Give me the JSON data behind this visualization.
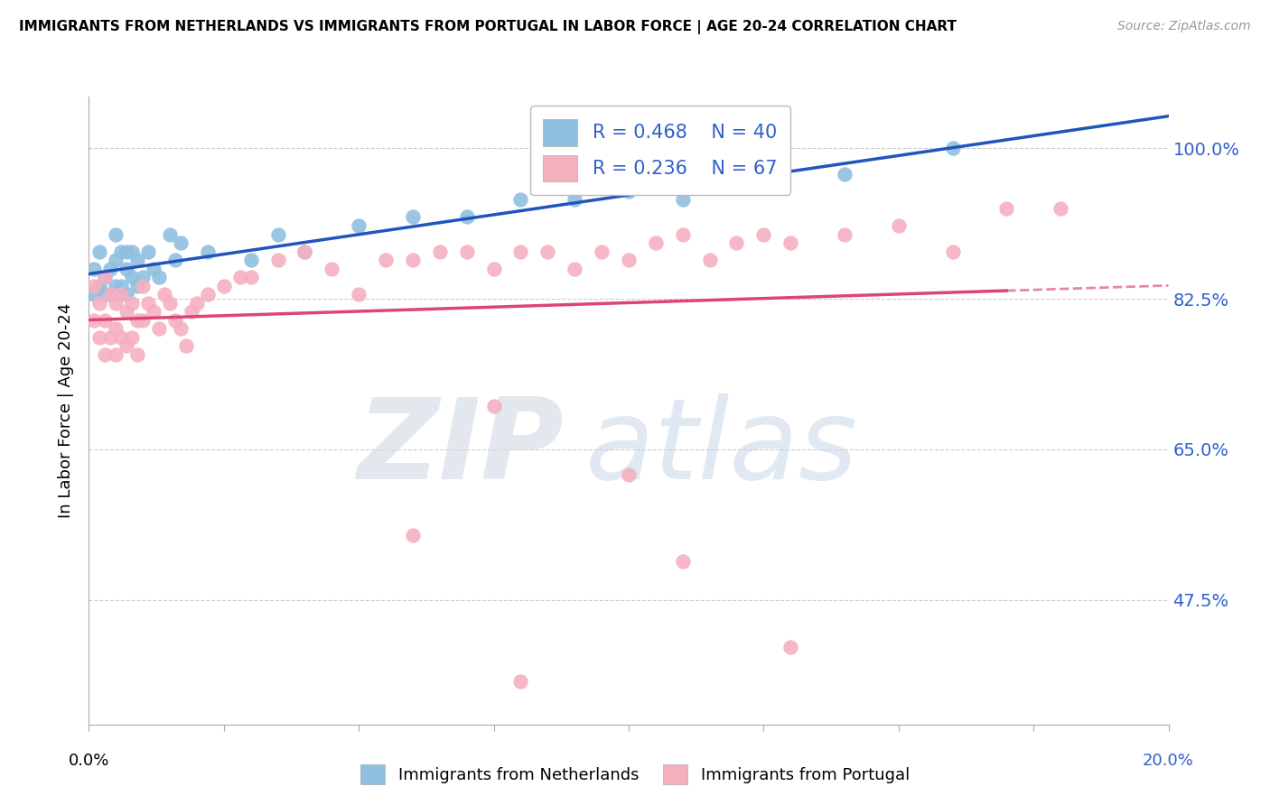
{
  "title": "IMMIGRANTS FROM NETHERLANDS VS IMMIGRANTS FROM PORTUGAL IN LABOR FORCE | AGE 20-24 CORRELATION CHART",
  "source": "Source: ZipAtlas.com",
  "ylabel": "In Labor Force | Age 20-24",
  "yticks": [
    0.475,
    0.65,
    0.825,
    1.0
  ],
  "ytick_labels": [
    "47.5%",
    "65.0%",
    "82.5%",
    "100.0%"
  ],
  "xlim": [
    0.0,
    0.2
  ],
  "ylim": [
    0.33,
    1.06
  ],
  "legend_r_blue": "R = 0.468",
  "legend_n_blue": "N = 40",
  "legend_r_pink": "R = 0.236",
  "legend_n_pink": "N = 67",
  "legend_label_blue": "Immigrants from Netherlands",
  "legend_label_pink": "Immigrants from Portugal",
  "blue_color": "#8fc0e0",
  "pink_color": "#f5b0c0",
  "blue_line_color": "#2255bb",
  "pink_line_color": "#dd4477",
  "netherlands_x": [
    0.001,
    0.001,
    0.002,
    0.002,
    0.003,
    0.003,
    0.004,
    0.004,
    0.005,
    0.005,
    0.005,
    0.006,
    0.006,
    0.007,
    0.007,
    0.007,
    0.008,
    0.008,
    0.009,
    0.009,
    0.01,
    0.011,
    0.012,
    0.013,
    0.015,
    0.016,
    0.017,
    0.022,
    0.03,
    0.035,
    0.04,
    0.05,
    0.06,
    0.07,
    0.08,
    0.09,
    0.1,
    0.11,
    0.14,
    0.16
  ],
  "netherlands_y": [
    0.86,
    0.83,
    0.88,
    0.84,
    0.85,
    0.83,
    0.86,
    0.83,
    0.84,
    0.87,
    0.9,
    0.84,
    0.88,
    0.86,
    0.83,
    0.88,
    0.85,
    0.88,
    0.84,
    0.87,
    0.85,
    0.88,
    0.86,
    0.85,
    0.9,
    0.87,
    0.89,
    0.88,
    0.87,
    0.9,
    0.88,
    0.91,
    0.92,
    0.92,
    0.94,
    0.94,
    0.95,
    0.94,
    0.97,
    1.0
  ],
  "portugal_x": [
    0.001,
    0.001,
    0.002,
    0.002,
    0.003,
    0.003,
    0.003,
    0.004,
    0.004,
    0.005,
    0.005,
    0.005,
    0.006,
    0.006,
    0.007,
    0.007,
    0.008,
    0.008,
    0.009,
    0.009,
    0.01,
    0.01,
    0.011,
    0.012,
    0.013,
    0.014,
    0.015,
    0.016,
    0.017,
    0.018,
    0.019,
    0.02,
    0.022,
    0.025,
    0.028,
    0.03,
    0.035,
    0.04,
    0.045,
    0.05,
    0.055,
    0.06,
    0.065,
    0.07,
    0.075,
    0.08,
    0.085,
    0.09,
    0.095,
    0.1,
    0.105,
    0.11,
    0.115,
    0.12,
    0.125,
    0.13,
    0.14,
    0.15,
    0.16,
    0.1,
    0.075,
    0.06,
    0.08,
    0.11,
    0.13,
    0.17,
    0.18
  ],
  "portugal_y": [
    0.84,
    0.8,
    0.82,
    0.78,
    0.85,
    0.8,
    0.76,
    0.83,
    0.78,
    0.82,
    0.79,
    0.76,
    0.83,
    0.78,
    0.81,
    0.77,
    0.82,
    0.78,
    0.8,
    0.76,
    0.84,
    0.8,
    0.82,
    0.81,
    0.79,
    0.83,
    0.82,
    0.8,
    0.79,
    0.77,
    0.81,
    0.82,
    0.83,
    0.84,
    0.85,
    0.85,
    0.87,
    0.88,
    0.86,
    0.83,
    0.87,
    0.87,
    0.88,
    0.88,
    0.86,
    0.88,
    0.88,
    0.86,
    0.88,
    0.87,
    0.89,
    0.9,
    0.87,
    0.89,
    0.9,
    0.89,
    0.9,
    0.91,
    0.88,
    0.62,
    0.7,
    0.55,
    0.38,
    0.52,
    0.42,
    0.93,
    0.93
  ],
  "watermark_zip": "ZIP",
  "watermark_atlas": "atlas",
  "background_color": "#ffffff",
  "grid_color": "#cccccc"
}
